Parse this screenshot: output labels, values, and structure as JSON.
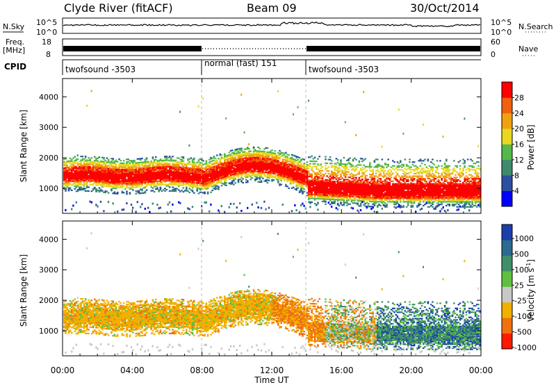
{
  "header": {
    "station": "Clyde River (fitACF)",
    "beam": "Beam 09",
    "date": "30/Oct/2014"
  },
  "top_panels": {
    "nsky_label": "N.Sky",
    "nsky_ticks": [
      "10^5",
      "10^0"
    ],
    "nsearch_label": "N.Search",
    "nsearch_ticks": [
      "10^5",
      "10^0"
    ],
    "freq_label": "Freq.",
    "freq_unit": "[MHz]",
    "freq_ticks": [
      "18",
      "8"
    ],
    "nave_label": "Nave",
    "nave_ticks": [
      "60",
      "0"
    ],
    "cpid_label": "CPID",
    "cpid_segments": [
      {
        "name": "twofsound -3503",
        "start": 0,
        "end": 8
      },
      {
        "name": "normal (fast) 151",
        "start": 8,
        "end": 14
      },
      {
        "name": "twofsound -3503",
        "start": 14,
        "end": 24
      }
    ]
  },
  "chart_data": [
    {
      "type": "heatmap",
      "quantity": "Power",
      "ylabel": "Slant Range [km]",
      "ylim": [
        180,
        4600
      ],
      "yticks": [
        "1000",
        "2000",
        "3000",
        "4000"
      ],
      "xlim": [
        0,
        24
      ],
      "colorbar_label": "Power [dB]",
      "colorbar_ticks": [
        "4",
        "8",
        "12",
        "16",
        "20",
        "24",
        "28"
      ],
      "colors": [
        "#0000ff",
        "#2c4fa0",
        "#3d8a6e",
        "#55b84a",
        "#e8d820",
        "#f0a010",
        "#f06010",
        "#ff0000"
      ],
      "grid": "dashed vertical lines at 08:00 and 14:00"
    },
    {
      "type": "heatmap",
      "quantity": "Velocity",
      "ylabel": "Slant Range [km]",
      "ylim": [
        180,
        4600
      ],
      "yticks": [
        "1000",
        "2000",
        "3000",
        "4000"
      ],
      "xlim": [
        0,
        24
      ],
      "colorbar_label": "Velocity [m s",
      "colorbar_label_sup": "-1",
      "colorbar_label_end": "]",
      "colorbar_ticks": [
        "1000",
        "500",
        "100",
        "25",
        "-25",
        "-100",
        "-500",
        "-1000"
      ],
      "colors": [
        "#1a3faa",
        "#2d6a8f",
        "#3e8f6a",
        "#5fc040",
        "#c8c8c8",
        "#f0b000",
        "#f07010",
        "#ff1a00"
      ],
      "grid": "dashed vertical lines at 08:00 and 14:00"
    }
  ],
  "x_axis": {
    "ticks": [
      "00:00",
      "04:00",
      "08:00",
      "12:00",
      "16:00",
      "20:00",
      "00:00"
    ],
    "label": "Time UT"
  }
}
